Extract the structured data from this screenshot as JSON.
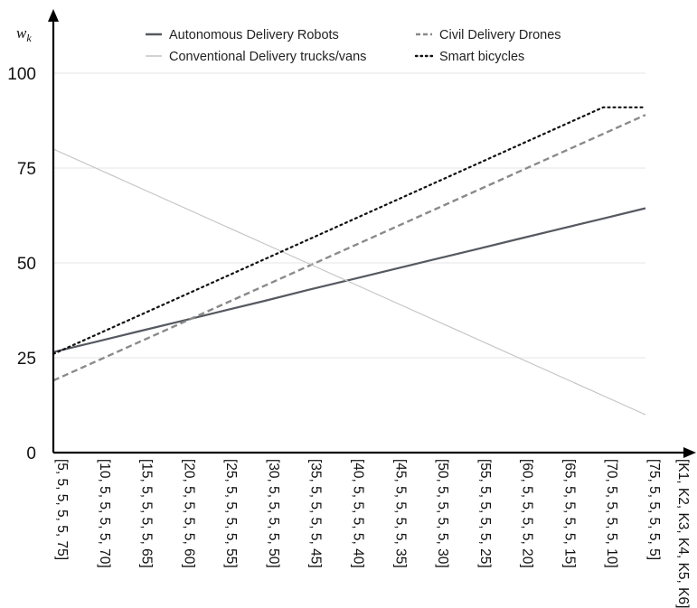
{
  "chart_data": {
    "type": "line",
    "ylabel": "w",
    "ylabel_sub": "k",
    "xlabel": "[K1, K2, K3, K4, K5, K6]",
    "ylim": [
      0,
      100
    ],
    "yticks": [
      0,
      25,
      50,
      75,
      100
    ],
    "grid": "horizontal",
    "legend_position": "top",
    "categories": [
      "[5, 5, 5, 5, 5, 75]",
      "[10, 5, 5, 5, 5, 70]",
      "[15, 5, 5, 5, 5, 65]",
      "[20, 5, 5, 5, 5, 60]",
      "[25, 5, 5, 5, 5, 55]",
      "[30, 5, 5, 5, 5, 50]",
      "[35, 5, 5, 5, 5, 45]",
      "[40, 5, 5, 5, 5, 40]",
      "[45, 5, 5, 5, 5, 35]",
      "[50, 5, 5, 5, 5, 30]",
      "[55, 5, 5, 5, 5, 25]",
      "[60, 5, 5, 5, 5, 20]",
      "[65, 5, 5, 5, 5, 15]",
      "[70, 5, 5, 5, 5, 10]",
      "[75, 5, 5, 5, 5, 5]"
    ],
    "series": [
      {
        "name": "Autonomous Delivery Robots",
        "color": "#555960",
        "style": "solid",
        "values": [
          26.5,
          29.2,
          31.9,
          34.6,
          37.3,
          40.0,
          42.8,
          45.5,
          48.2,
          50.9,
          53.6,
          56.3,
          59.0,
          61.7,
          64.4
        ]
      },
      {
        "name": "Civil Delivery Drones",
        "color": "#8a8a8a",
        "style": "dashed",
        "values": [
          19.0,
          24.0,
          29.0,
          34.0,
          39.0,
          44.0,
          49.0,
          54.0,
          59.0,
          64.0,
          69.0,
          74.0,
          79.0,
          84.0,
          89.0
        ]
      },
      {
        "name": "Conventional Delivery trucks/vans",
        "color": "#c4c4c4",
        "style": "solid",
        "values": [
          80.0,
          75.0,
          70.0,
          65.0,
          60.0,
          55.0,
          50.0,
          45.0,
          40.0,
          35.0,
          30.0,
          25.0,
          20.0,
          15.0,
          10.0
        ]
      },
      {
        "name": "Smart bicycles",
        "color": "#111111",
        "style": "dotted",
        "values": [
          26.0,
          31.0,
          36.0,
          41.0,
          46.0,
          51.0,
          56.0,
          61.0,
          66.0,
          71.0,
          76.0,
          81.0,
          86.0,
          91.0,
          91.0
        ]
      }
    ]
  }
}
